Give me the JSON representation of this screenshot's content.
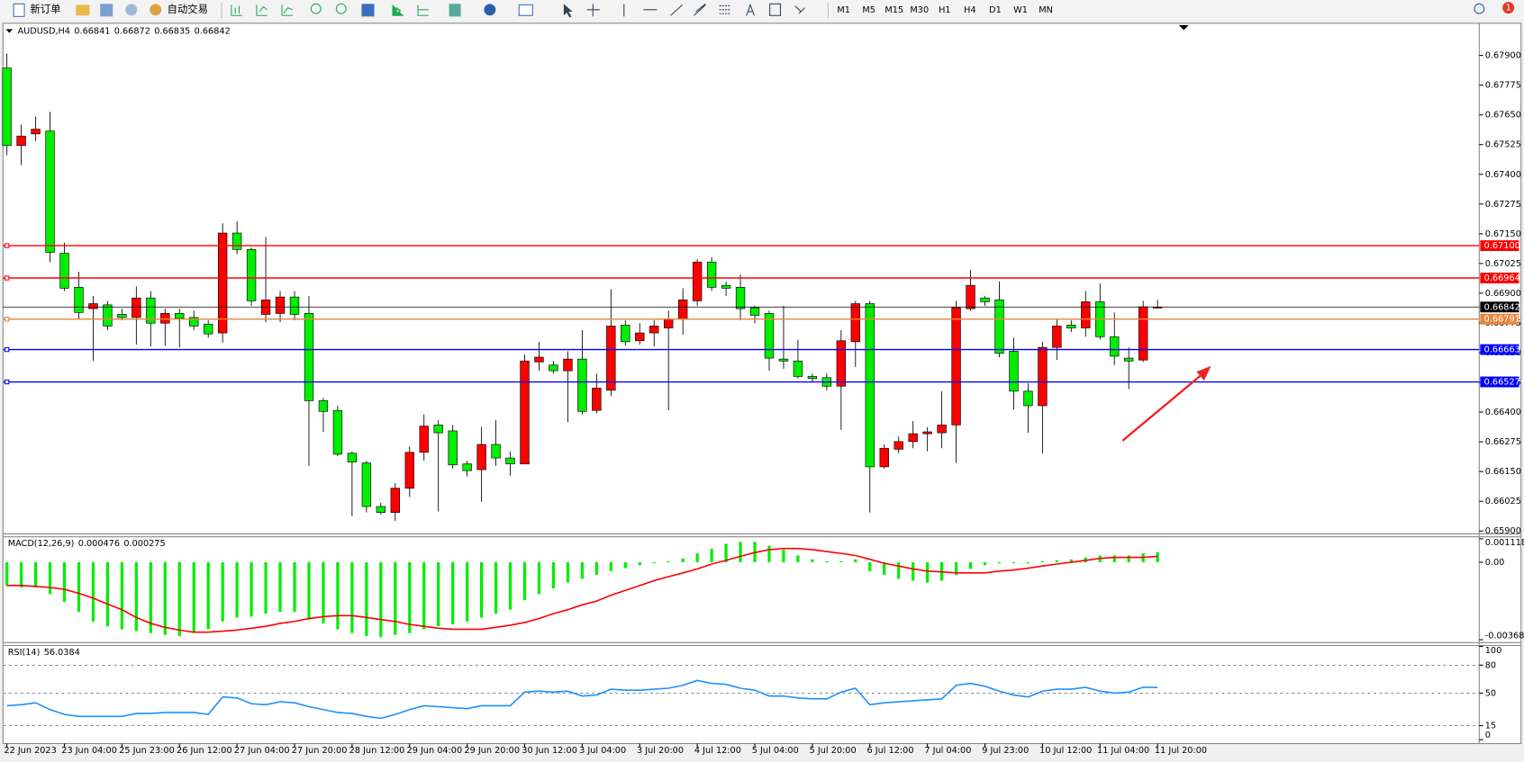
{
  "toolbar": {
    "new_order": "新订单",
    "auto_trading": "自动交易",
    "timeframes": [
      "M1",
      "M5",
      "M15",
      "M30",
      "H1",
      "H4",
      "D1",
      "W1",
      "MN"
    ],
    "alert_count": "1"
  },
  "chart_data": [
    {
      "type": "candlestick",
      "title": "AUDUSD,H4",
      "categories": [
        "22 Jun 2023",
        null,
        null,
        null,
        "23 Jun 04:00",
        null,
        null,
        null,
        "25 Jun 23:00",
        null,
        null,
        null,
        "26 Jun 12:00",
        null,
        null,
        null,
        "27 Jun 04:00",
        null,
        null,
        null,
        "27 Jun 20:00",
        null,
        null,
        null,
        "28 Jun 12:00",
        null,
        null,
        null,
        "29 Jun 04:00",
        null,
        null,
        null,
        "29 Jun 20:00",
        null,
        null,
        null,
        "30 Jun 12:00",
        null,
        null,
        null,
        "3 Jul 04:00",
        null,
        null,
        null,
        "3 Jul 20:00",
        null,
        null,
        null,
        "4 Jul 12:00",
        null,
        null,
        null,
        "5 Jul 04:00",
        null,
        null,
        null,
        "5 Jul 20:00",
        null,
        null,
        null,
        "6 Jul 12:00",
        null,
        null,
        null,
        "7 Jul 04:00",
        null,
        null,
        null,
        "9 Jul 23:00",
        null,
        null,
        null,
        "10 Jul 12:00",
        null,
        null,
        null,
        "11 Jul 04:00",
        null,
        null,
        null,
        "11 Jul 20:00"
      ],
      "open": [
        0.67847,
        0.67521,
        0.6757,
        0.67582,
        0.67068,
        0.66925,
        0.66835,
        0.66851,
        0.66811,
        0.66798,
        0.6688,
        0.66774,
        0.66815,
        0.66798,
        0.6677,
        0.66733,
        0.67153,
        0.67084,
        0.66811,
        0.66815,
        0.66884,
        0.66815,
        0.66448,
        0.66407,
        0.66227,
        0.66186,
        0.66003,
        0.65978,
        0.6608,
        0.66231,
        0.66346,
        0.66321,
        0.66182,
        0.66158,
        0.66264,
        0.66207,
        0.66182,
        0.66611,
        0.66598,
        0.66574,
        0.66623,
        0.66407,
        0.66492,
        0.66766,
        0.667,
        0.66733,
        0.66754,
        0.6679,
        0.66868,
        0.67031,
        0.66933,
        0.66925,
        0.66839,
        0.66815,
        0.66623,
        0.66615,
        0.6655,
        0.66545,
        0.66509,
        0.66696,
        0.66856,
        0.6617,
        0.66244,
        0.66276,
        0.66309,
        0.66313,
        0.66346,
        0.66835,
        0.6688,
        0.66872,
        0.66656,
        0.66488,
        0.66427,
        0.66672,
        0.66766,
        0.66754,
        0.66864,
        0.66717,
        0.66627,
        0.66619,
        0.66841
      ],
      "high": [
        0.67908,
        0.6761,
        0.67643,
        0.67663,
        0.67113,
        0.6699,
        0.66888,
        0.66868,
        0.66835,
        0.66929,
        0.66909,
        0.66835,
        0.66835,
        0.66827,
        0.66786,
        0.67194,
        0.67202,
        0.67092,
        0.67137,
        0.66909,
        0.66909,
        0.66888,
        0.6646,
        0.66427,
        0.66235,
        0.66195,
        0.66019,
        0.66101,
        0.66256,
        0.6639,
        0.66366,
        0.66346,
        0.66195,
        0.66337,
        0.66366,
        0.66235,
        0.66643,
        0.66696,
        0.66615,
        0.66656,
        0.66745,
        0.66562,
        0.66917,
        0.66786,
        0.66774,
        0.66786,
        0.66827,
        0.66921,
        0.67043,
        0.67051,
        0.66949,
        0.66978,
        0.66847,
        0.66827,
        0.66847,
        0.66705,
        0.66562,
        0.66562,
        0.66745,
        0.66868,
        0.66868,
        0.66264,
        0.66297,
        0.66362,
        0.66337,
        0.66488,
        0.66868,
        0.66998,
        0.66888,
        0.66949,
        0.66713,
        0.66521,
        0.66696,
        0.66794,
        0.66786,
        0.66909,
        0.66941,
        0.66819,
        0.66672,
        0.66868,
        0.66872
      ],
      "low": [
        0.6748,
        0.67439,
        0.67541,
        0.67031,
        0.66909,
        0.66794,
        0.66615,
        0.66745,
        0.66786,
        0.66684,
        0.66676,
        0.6668,
        0.66672,
        0.66745,
        0.66713,
        0.66692,
        0.67064,
        0.66847,
        0.66778,
        0.66778,
        0.66786,
        0.66174,
        0.66317,
        0.66215,
        0.65962,
        0.65978,
        0.6597,
        0.65942,
        0.66044,
        0.66195,
        0.65982,
        0.66162,
        0.66129,
        0.66023,
        0.66174,
        0.66133,
        0.66182,
        0.66574,
        0.66562,
        0.66358,
        0.6639,
        0.66395,
        0.66468,
        0.6668,
        0.66684,
        0.66676,
        0.66407,
        0.66725,
        0.66847,
        0.66909,
        0.66888,
        0.66786,
        0.66774,
        0.66574,
        0.66582,
        0.66541,
        0.66529,
        0.66492,
        0.66325,
        0.6659,
        0.65978,
        0.66162,
        0.66227,
        0.66248,
        0.66235,
        0.66248,
        0.66186,
        0.66827,
        0.66847,
        0.66631,
        0.66411,
        0.66313,
        0.66227,
        0.66619,
        0.66737,
        0.66717,
        0.66705,
        0.66598,
        0.66497,
        0.66611,
        0.66835
      ],
      "close": [
        0.67521,
        0.67561,
        0.6759,
        0.67072,
        0.66921,
        0.66819,
        0.66856,
        0.66762,
        0.66798,
        0.6688,
        0.66774,
        0.66815,
        0.66794,
        0.66762,
        0.66729,
        0.67153,
        0.67084,
        0.66868,
        0.66872,
        0.66884,
        0.66811,
        0.66448,
        0.66403,
        0.66223,
        0.6619,
        0.66003,
        0.65978,
        0.6608,
        0.66231,
        0.66341,
        0.66313,
        0.66178,
        0.66154,
        0.66264,
        0.66207,
        0.66182,
        0.66615,
        0.66631,
        0.66574,
        0.66623,
        0.66403,
        0.66501,
        0.66762,
        0.66696,
        0.66733,
        0.66762,
        0.6679,
        0.66872,
        0.67031,
        0.66925,
        0.66921,
        0.66835,
        0.66807,
        0.66627,
        0.66615,
        0.6655,
        0.66541,
        0.66509,
        0.667,
        0.66856,
        0.6617,
        0.66248,
        0.66276,
        0.66309,
        0.66317,
        0.66346,
        0.66839,
        0.66933,
        0.66864,
        0.66647,
        0.66488,
        0.66427,
        0.66672,
        0.66762,
        0.66754,
        0.66864,
        0.66717,
        0.66635,
        0.66615,
        0.66843,
        0.66842
      ],
      "up_color": "#ff0000",
      "down_color": "#00ee00",
      "current_price_color": "#000000",
      "ylim": [
        0.65892,
        0.68031
      ],
      "yticks": [
        {
          "value": 0.679,
          "label": "0.67900"
        },
        {
          "value": 0.67775,
          "label": "0.67775"
        },
        {
          "value": 0.6765,
          "label": "0.67650"
        },
        {
          "value": 0.67525,
          "label": "0.67525"
        },
        {
          "value": 0.674,
          "label": "0.67400"
        },
        {
          "value": 0.67275,
          "label": "0.67275"
        },
        {
          "value": 0.6715,
          "label": "0.67150"
        },
        {
          "value": 0.67025,
          "label": "0.67025"
        },
        {
          "value": 0.669,
          "label": "0.66900"
        },
        {
          "value": 0.66775,
          "label": "0.66775"
        },
        {
          "value": 0.6665,
          "label": "0.66650"
        },
        {
          "value": 0.66525,
          "label": "0.66525"
        },
        {
          "value": 0.664,
          "label": "0.66400"
        },
        {
          "value": 0.66275,
          "label": "0.66275"
        },
        {
          "value": 0.6615,
          "label": "0.66150"
        },
        {
          "value": 0.66025,
          "label": "0.66025"
        },
        {
          "value": 0.659,
          "label": "0.65900"
        }
      ],
      "hlines": [
        {
          "value": 0.671,
          "label": "0.67100",
          "color": "#ff0000"
        },
        {
          "value": 0.66964,
          "label": "0.66964",
          "color": "#ff0000"
        },
        {
          "value": 0.66791,
          "label": "0.66791",
          "color": "#e8843c"
        },
        {
          "value": 0.66663,
          "label": "0.66663",
          "color": "#0000ff"
        },
        {
          "value": 0.66527,
          "label": "0.66527",
          "color": "#0000ff"
        }
      ]
    },
    {
      "type": "macd",
      "title": "MACD(12,26,9)",
      "ylim": [
        -0.003687,
        0.001118
      ],
      "yticks": [
        0.001118,
        {
          "value": 0,
          "label": "0.00"
        },
        -0.003687
      ],
      "series": [
        {
          "style": "histogram",
          "color": "#00ee00",
          "values": [
            -0.00111,
            -0.0012,
            -0.0012,
            -0.00152,
            -0.00189,
            -0.00236,
            -0.00282,
            -0.00305,
            -0.00319,
            -0.00328,
            -0.00337,
            -0.00346,
            -0.00351,
            -0.00337,
            -0.00319,
            -0.00282,
            -0.00263,
            -0.00259,
            -0.00245,
            -0.00236,
            -0.00236,
            -0.00273,
            -0.00291,
            -0.00319,
            -0.00337,
            -0.00351,
            -0.00356,
            -0.00346,
            -0.00337,
            -0.00319,
            -0.00305,
            -0.00296,
            -0.00282,
            -0.00263,
            -0.00245,
            -0.00226,
            -0.0018,
            -0.00152,
            -0.00125,
            -0.00097,
            -0.00079,
            -0.0006,
            -0.00042,
            -0.00028,
            -0.00014,
            -5e-05,
            5e-05,
            0.00018,
            0.00042,
            0.00065,
            0.00088,
            0.00097,
            0.00097,
            0.00079,
            0.0006,
            0.00032,
            0.00014,
            5e-05,
            5e-05,
            0.00014,
            -0.00042,
            -0.0006,
            -0.00079,
            -0.00088,
            -0.00097,
            -0.00088,
            -0.0006,
            -0.00032,
            -0.00014,
            -5e-05,
            -5e-05,
            -5e-05,
            5e-05,
            9e-05,
            0.00014,
            0.00023,
            0.00032,
            0.00032,
            0.00032,
            0.00042,
            0.000476
          ]
        },
        {
          "style": "line",
          "color": "#ff0000",
          "values": [
            -0.00111,
            -0.00111,
            -0.00115,
            -0.0012,
            -0.00129,
            -0.00148,
            -0.00171,
            -0.00199,
            -0.00226,
            -0.00263,
            -0.00291,
            -0.0031,
            -0.00323,
            -0.00333,
            -0.00333,
            -0.00328,
            -0.00323,
            -0.00314,
            -0.00305,
            -0.00291,
            -0.00282,
            -0.00268,
            -0.00259,
            -0.00254,
            -0.00254,
            -0.00263,
            -0.00273,
            -0.00282,
            -0.00296,
            -0.00305,
            -0.00314,
            -0.00319,
            -0.00319,
            -0.00319,
            -0.0031,
            -0.003,
            -0.00287,
            -0.00268,
            -0.00245,
            -0.00226,
            -0.00203,
            -0.00185,
            -0.00157,
            -0.00134,
            -0.00111,
            -0.00088,
            -0.00069,
            -0.00051,
            -0.00032,
            -9e-05,
            9e-05,
            0.00028,
            0.00046,
            0.0006,
            0.00065,
            0.00065,
            0.0006,
            0.00051,
            0.00042,
            0.00032,
            0.00014,
            -5e-05,
            -0.00018,
            -0.00032,
            -0.00042,
            -0.00046,
            -0.00051,
            -0.00051,
            -0.00051,
            -0.00042,
            -0.00037,
            -0.00028,
            -0.00018,
            -9e-05,
            0,
            9e-05,
            0.00018,
            0.00023,
            0.00023,
            0.00023,
            0.000275
          ]
        }
      ]
    },
    {
      "type": "line",
      "title": "RSI(14)",
      "ylim": [
        0,
        100
      ],
      "yticks": [
        100,
        80,
        50,
        15,
        0
      ],
      "grid": "dashed",
      "series": [
        {
          "color": "#1e90ff",
          "values": [
            36.5,
            37.5,
            39.6,
            32.3,
            27.1,
            25,
            25,
            25,
            25,
            28.1,
            28.1,
            29.2,
            29.2,
            29.2,
            27.1,
            45.8,
            44.8,
            38.5,
            37.5,
            40.6,
            39.6,
            35.4,
            32.3,
            29.2,
            28.1,
            25,
            22.9,
            27.1,
            32.3,
            36.5,
            35.4,
            34.4,
            33.3,
            36.5,
            36.5,
            36.5,
            51,
            52.1,
            51,
            52.1,
            46.9,
            47.9,
            54.2,
            53.1,
            53.1,
            54.2,
            55.2,
            58.3,
            63.5,
            60.4,
            59.4,
            55.2,
            53.1,
            46.9,
            46.9,
            44.8,
            43.8,
            43.8,
            51,
            55.2,
            37.5,
            39.6,
            40.6,
            41.7,
            42.7,
            43.8,
            58.3,
            60.4,
            57.3,
            52.1,
            47.9,
            45.8,
            52.1,
            54.2,
            54.2,
            56.3,
            52.1,
            50,
            51,
            56.3,
            56.0384
          ]
        }
      ]
    }
  ]
}
